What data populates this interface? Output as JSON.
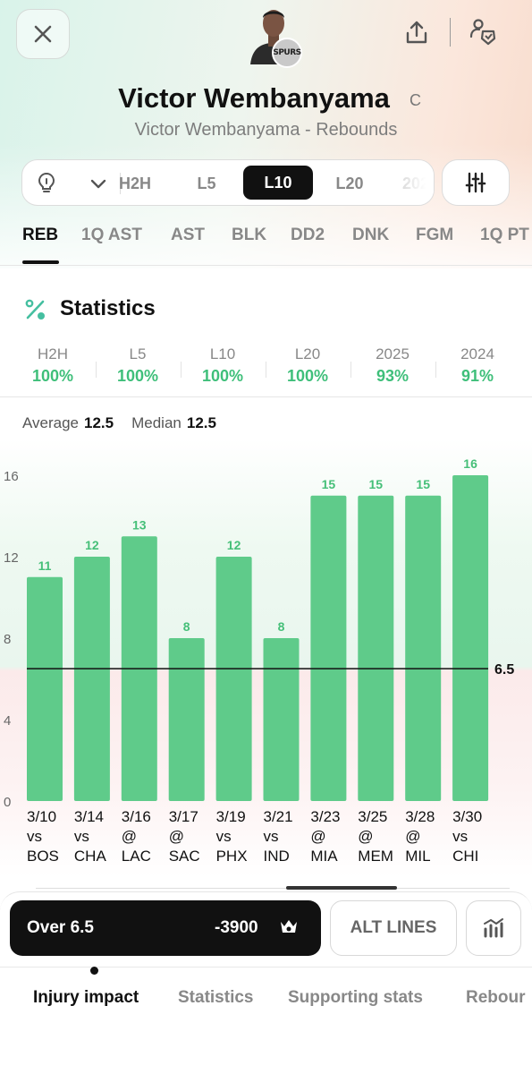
{
  "header": {
    "player_name": "Victor Wembanyama",
    "position": "C",
    "subtitle": "Victor Wembanyama - Rebounds",
    "team_badge": "SPURS"
  },
  "filters": {
    "timeframes": [
      "H2H",
      "L5",
      "L10",
      "L20",
      "202"
    ],
    "active_timeframe": "L10"
  },
  "stat_tabs": [
    "REB",
    "1Q AST",
    "AST",
    "BLK",
    "DD2",
    "DNK",
    "FGM",
    "1Q PT"
  ],
  "active_stat_tab": "REB",
  "statistics": {
    "title": "Statistics",
    "hit_rates": [
      {
        "label": "H2H",
        "value": "100%"
      },
      {
        "label": "L5",
        "value": "100%"
      },
      {
        "label": "L10",
        "value": "100%"
      },
      {
        "label": "L20",
        "value": "100%"
      },
      {
        "label": "2025",
        "value": "93%"
      },
      {
        "label": "2024",
        "value": "91%"
      }
    ],
    "average_label": "Average",
    "average_value": "12.5",
    "median_label": "Median",
    "median_value": "12.5"
  },
  "chart_data": {
    "type": "bar",
    "categories": [
      {
        "date": "3/10",
        "venue": "vs",
        "opp": "BOS"
      },
      {
        "date": "3/14",
        "venue": "vs",
        "opp": "CHA"
      },
      {
        "date": "3/16",
        "venue": "@",
        "opp": "LAC"
      },
      {
        "date": "3/17",
        "venue": "@",
        "opp": "SAC"
      },
      {
        "date": "3/19",
        "venue": "vs",
        "opp": "PHX"
      },
      {
        "date": "3/21",
        "venue": "vs",
        "opp": "IND"
      },
      {
        "date": "3/23",
        "venue": "@",
        "opp": "MIA"
      },
      {
        "date": "3/25",
        "venue": "@",
        "opp": "MEM"
      },
      {
        "date": "3/28",
        "venue": "@",
        "opp": "MIL"
      },
      {
        "date": "3/30",
        "venue": "vs",
        "opp": "CHI"
      }
    ],
    "values": [
      11,
      12,
      13,
      8,
      12,
      8,
      15,
      15,
      15,
      16
    ],
    "y_ticks": [
      0,
      4,
      8,
      12,
      16
    ],
    "ylim": [
      0,
      16
    ],
    "line_value": 6.5,
    "line_label": "6.5",
    "bar_color": "#5fcb8a",
    "label_color": "#45bf78"
  },
  "bet": {
    "over_label": "Over 6.5",
    "odds": "-3900",
    "alt_lines_label": "ALT LINES"
  },
  "bottom_nav": [
    "Injury impact",
    "Statistics",
    "Supporting stats",
    "Rebour"
  ],
  "active_bottom_nav": "Injury impact"
}
